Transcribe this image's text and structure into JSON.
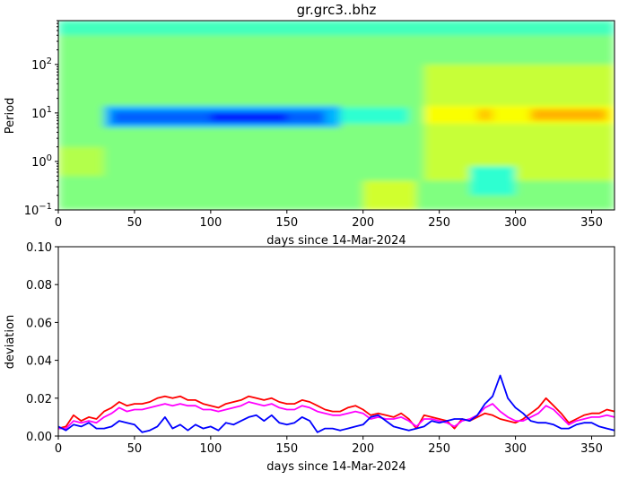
{
  "figure": {
    "title": "gr.grc3..bhz"
  },
  "chart_data": [
    {
      "type": "heatmap",
      "title": "gr.grc3..bhz",
      "xlabel": "days since 14-Mar-2024",
      "ylabel": "Period",
      "xlim": [
        0,
        365
      ],
      "ylim": [
        0.1,
        800
      ],
      "yscale": "log",
      "xticks": [
        0,
        50,
        100,
        150,
        200,
        250,
        300,
        350
      ],
      "yticks": [
        {
          "value": 0.1,
          "base": "10",
          "exp": "−1"
        },
        {
          "value": 1,
          "base": "10",
          "exp": "0"
        },
        {
          "value": 10,
          "base": "10",
          "exp": "1"
        },
        {
          "value": 100,
          "base": "10",
          "exp": "2"
        }
      ],
      "colormap": "jet",
      "bands": [
        {
          "x": [
            0,
            365
          ],
          "y": [
            0.1,
            800
          ],
          "level": 0.5
        },
        {
          "x": [
            0,
            365
          ],
          "y": [
            400,
            800
          ],
          "level": 0.44
        },
        {
          "x": [
            30,
            185
          ],
          "y": [
            5,
            14
          ],
          "level": 0.3
        },
        {
          "x": [
            35,
            175
          ],
          "y": [
            6,
            11
          ],
          "level": 0.22
        },
        {
          "x": [
            100,
            150
          ],
          "y": [
            6.5,
            10
          ],
          "level": 0.15
        },
        {
          "x": [
            185,
            230
          ],
          "y": [
            6,
            13
          ],
          "level": 0.42
        },
        {
          "x": [
            240,
            365
          ],
          "y": [
            0.4,
            100
          ],
          "level": 0.57
        },
        {
          "x": [
            240,
            365
          ],
          "y": [
            6,
            14
          ],
          "level": 0.62
        },
        {
          "x": [
            275,
            285
          ],
          "y": [
            7,
            12
          ],
          "level": 0.68
        },
        {
          "x": [
            310,
            360
          ],
          "y": [
            7,
            12
          ],
          "level": 0.7
        },
        {
          "x": [
            270,
            300
          ],
          "y": [
            0.2,
            0.8
          ],
          "level": 0.42
        },
        {
          "x": [
            0,
            30
          ],
          "y": [
            0.5,
            2
          ],
          "level": 0.55
        },
        {
          "x": [
            200,
            235
          ],
          "y": [
            0.1,
            0.4
          ],
          "level": 0.58
        }
      ]
    },
    {
      "type": "line",
      "xlabel": "days since 14-Mar-2024",
      "ylabel": "deviation",
      "xlim": [
        0,
        365
      ],
      "ylim": [
        0,
        0.1
      ],
      "xticks": [
        0,
        50,
        100,
        150,
        200,
        250,
        300,
        350
      ],
      "yticks": [
        "0.00",
        "0.02",
        "0.04",
        "0.06",
        "0.08",
        "0.10"
      ],
      "x": [
        0,
        5,
        10,
        15,
        20,
        25,
        30,
        35,
        40,
        45,
        50,
        55,
        60,
        65,
        70,
        75,
        80,
        85,
        90,
        95,
        100,
        105,
        110,
        115,
        120,
        125,
        130,
        135,
        140,
        145,
        150,
        155,
        160,
        165,
        170,
        175,
        180,
        185,
        190,
        195,
        200,
        205,
        210,
        215,
        220,
        225,
        230,
        235,
        240,
        245,
        250,
        255,
        260,
        265,
        270,
        275,
        280,
        285,
        290,
        295,
        300,
        305,
        310,
        315,
        320,
        325,
        330,
        335,
        340,
        345,
        350,
        355,
        360,
        365
      ],
      "series": [
        {
          "color": "#ff0000",
          "values": [
            0.004,
            0.005,
            0.011,
            0.008,
            0.01,
            0.009,
            0.013,
            0.015,
            0.018,
            0.016,
            0.017,
            0.017,
            0.018,
            0.02,
            0.021,
            0.02,
            0.021,
            0.019,
            0.019,
            0.017,
            0.016,
            0.015,
            0.017,
            0.018,
            0.019,
            0.021,
            0.02,
            0.019,
            0.02,
            0.018,
            0.017,
            0.017,
            0.019,
            0.018,
            0.016,
            0.014,
            0.013,
            0.013,
            0.015,
            0.016,
            0.014,
            0.011,
            0.012,
            0.011,
            0.01,
            0.012,
            0.009,
            0.004,
            0.011,
            0.01,
            0.009,
            0.008,
            0.004,
            0.009,
            0.008,
            0.01,
            0.012,
            0.011,
            0.009,
            0.008,
            0.007,
            0.009,
            0.012,
            0.015,
            0.02,
            0.016,
            0.012,
            0.007,
            0.009,
            0.011,
            0.012,
            0.012,
            0.014,
            0.013
          ]
        },
        {
          "color": "#ff00ff",
          "values": [
            0.004,
            0.004,
            0.008,
            0.007,
            0.008,
            0.007,
            0.01,
            0.012,
            0.015,
            0.013,
            0.014,
            0.014,
            0.015,
            0.016,
            0.017,
            0.016,
            0.017,
            0.016,
            0.016,
            0.014,
            0.014,
            0.013,
            0.014,
            0.015,
            0.016,
            0.018,
            0.017,
            0.016,
            0.017,
            0.015,
            0.014,
            0.014,
            0.016,
            0.015,
            0.013,
            0.012,
            0.011,
            0.011,
            0.012,
            0.013,
            0.012,
            0.009,
            0.01,
            0.009,
            0.009,
            0.01,
            0.008,
            0.005,
            0.009,
            0.009,
            0.008,
            0.007,
            0.005,
            0.008,
            0.009,
            0.011,
            0.015,
            0.017,
            0.013,
            0.01,
            0.008,
            0.008,
            0.01,
            0.012,
            0.016,
            0.014,
            0.01,
            0.006,
            0.008,
            0.009,
            0.01,
            0.01,
            0.011,
            0.01
          ]
        },
        {
          "color": "#0000ff",
          "values": [
            0.005,
            0.003,
            0.006,
            0.005,
            0.007,
            0.004,
            0.004,
            0.005,
            0.008,
            0.007,
            0.006,
            0.002,
            0.003,
            0.005,
            0.01,
            0.004,
            0.006,
            0.003,
            0.006,
            0.004,
            0.005,
            0.003,
            0.007,
            0.006,
            0.008,
            0.01,
            0.011,
            0.008,
            0.011,
            0.007,
            0.006,
            0.007,
            0.01,
            0.008,
            0.002,
            0.004,
            0.004,
            0.003,
            0.004,
            0.005,
            0.006,
            0.01,
            0.011,
            0.008,
            0.005,
            0.004,
            0.003,
            0.004,
            0.005,
            0.008,
            0.007,
            0.008,
            0.009,
            0.009,
            0.008,
            0.011,
            0.017,
            0.021,
            0.032,
            0.02,
            0.015,
            0.012,
            0.008,
            0.007,
            0.007,
            0.006,
            0.004,
            0.004,
            0.006,
            0.007,
            0.007,
            0.005,
            0.004,
            0.003
          ]
        }
      ]
    }
  ]
}
